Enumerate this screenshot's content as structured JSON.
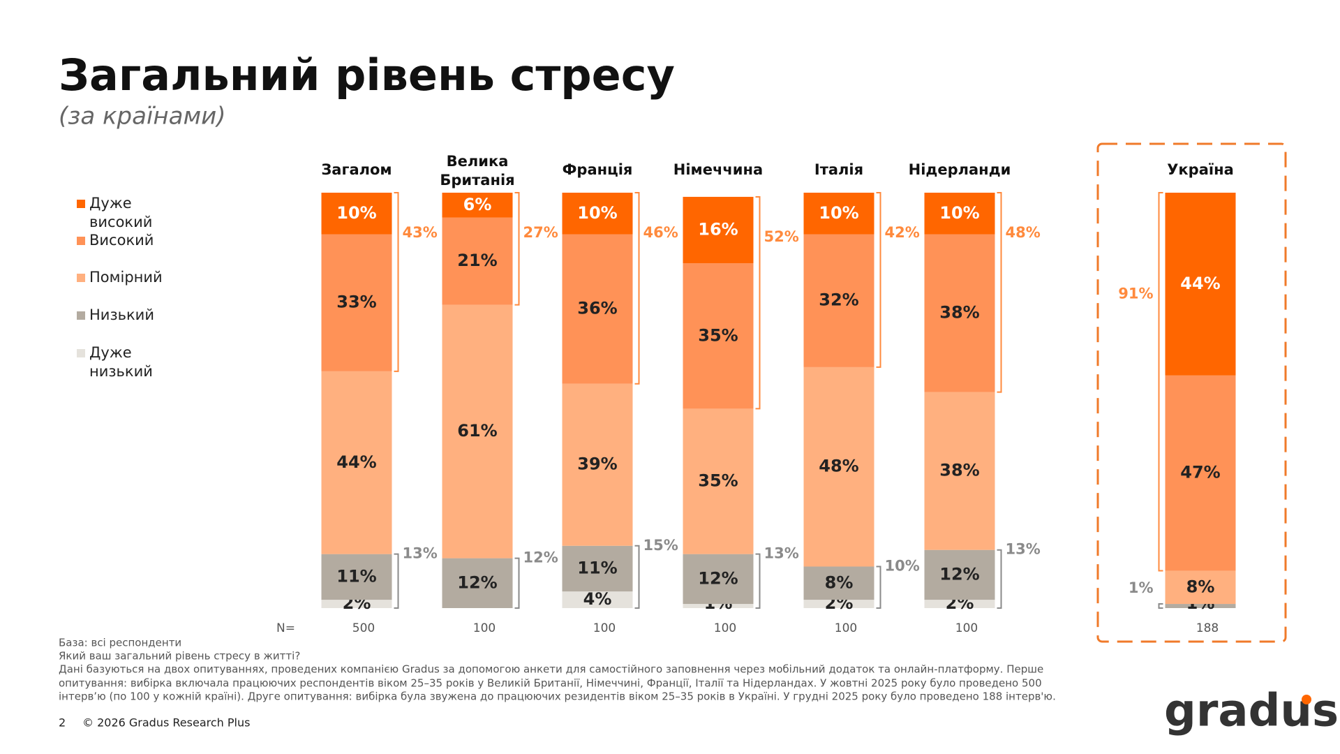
{
  "chart_data": {
    "type": "stacked_bar",
    "title": "Загальний рівень стресу",
    "subtitle": "(за країнами)",
    "categories": [
      "Загалом",
      "Велика Британія",
      "Франція",
      "Німеччина",
      "Італія",
      "Нідерланди",
      "Україна"
    ],
    "ylim": [
      0,
      100
    ],
    "series": [
      {
        "name": "Дуже високий",
        "color": "#ff6600",
        "values": [
          10,
          6,
          10,
          16,
          10,
          10,
          44
        ],
        "value_labels": [
          "10%",
          "6%",
          "10%",
          "16%",
          "10%",
          "10%",
          "44%"
        ]
      },
      {
        "name": "Високий",
        "color": "#ff9257",
        "values": [
          33,
          21,
          36,
          35,
          32,
          38,
          47
        ],
        "value_labels": [
          "33%",
          "21%",
          "36%",
          "35%",
          "32%",
          "38%",
          "47%"
        ]
      },
      {
        "name": "Помірний",
        "color": "#ffb07f",
        "values": [
          44,
          61,
          39,
          35,
          48,
          38,
          8
        ],
        "value_labels": [
          "44%",
          "61%",
          "39%",
          "35%",
          "48%",
          "38%",
          "8%"
        ]
      },
      {
        "name": "Низький",
        "color": "#b3aba0",
        "values": [
          11,
          12,
          11,
          12,
          8,
          12,
          1
        ],
        "value_labels": [
          "11%",
          "12%",
          "11%",
          "12%",
          "8%",
          "12%",
          "1%"
        ]
      },
      {
        "name": "Дуже низький",
        "color": "#e5e2dc",
        "values": [
          2,
          null,
          4,
          1,
          2,
          2,
          null
        ],
        "value_labels": [
          "2%",
          null,
          "4%",
          "1%",
          "2%",
          "2%",
          null
        ]
      }
    ],
    "high_totals": {
      "color": "#ff8a3d",
      "values": [
        43,
        27,
        46,
        52,
        42,
        48,
        91
      ],
      "value_labels": [
        "43%",
        "27%",
        "46%",
        "52%",
        "42%",
        "48%",
        "91%"
      ]
    },
    "low_totals": {
      "color": "#8a8a8a",
      "values": [
        13,
        12,
        15,
        13,
        10,
        13,
        1
      ],
      "value_labels": [
        "13%",
        "12%",
        "15%",
        "13%",
        "10%",
        "13%",
        "1%"
      ]
    },
    "n_label": "N=",
    "n_values": [
      500,
      100,
      100,
      100,
      100,
      100,
      188
    ]
  },
  "footer": {
    "notes": [
      "База: всі респонденти",
      "Який ваш загальний рівень стресу в житті?",
      "Дані базуються на двох опитуваннях, проведених компанією Gradus за допомогою анкети для самостійного заповнення через мобільний додаток та онлайн-платформу. Перше",
      "опитування: вибірка включала працюючих респондентів віком 25–35 років у Великій Британії, Німеччині, Франції, Італії та Нідерландах. У жовтні 2025 року було проведено 500",
      "інтерв’ю (по 100 у кожній країні). Друге опитування: вибірка була звужена до працюючих резидентів віком 25–35 років в Україні. У грудні 2025 року було проведено 188 інтерв'ю."
    ],
    "page_number": "2",
    "copyright": "© 2026 Gradus Research Plus",
    "logo": "gradus"
  }
}
